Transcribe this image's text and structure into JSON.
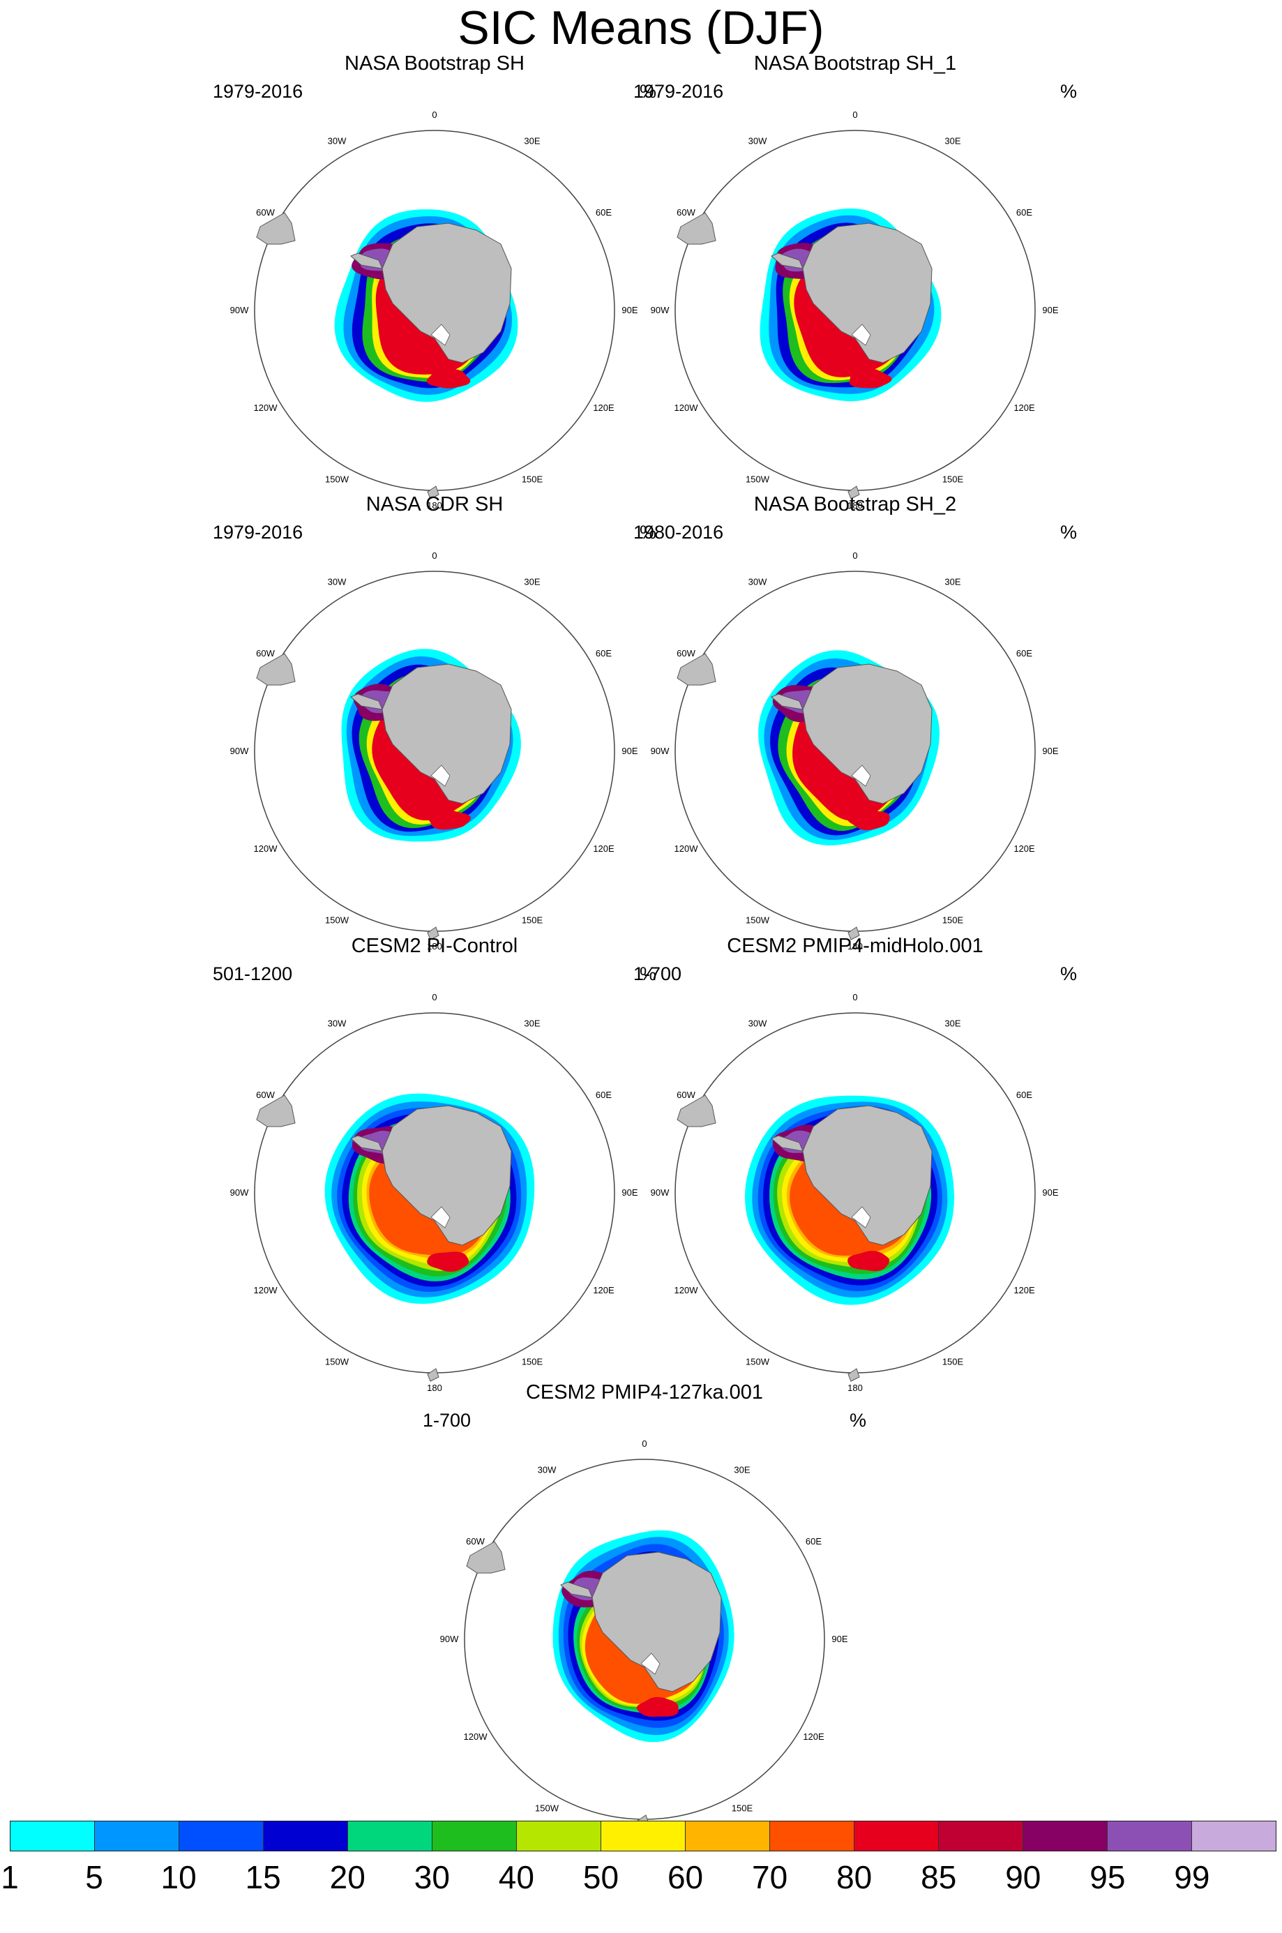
{
  "title": "SIC Means (DJF)",
  "units": "%",
  "graticule_labels": [
    "0",
    "30E",
    "60E",
    "90E",
    "120E",
    "150E",
    "180",
    "150W",
    "120W",
    "90W",
    "60W",
    "30W"
  ],
  "panels": [
    {
      "title": "NASA Bootstrap SH",
      "period": "1979-2016",
      "style": "obs"
    },
    {
      "title": "NASA Bootstrap SH_1",
      "period": "1979-2016",
      "style": "obs"
    },
    {
      "title": "NASA CDR SH",
      "period": "1979-2016",
      "style": "obs"
    },
    {
      "title": "NASA Bootstrap SH_2",
      "period": "1980-2016",
      "style": "obs"
    },
    {
      "title": "CESM2 PI-Control",
      "period": "501-1200",
      "style": "model"
    },
    {
      "title": "CESM2 PMIP4-midHolo.001",
      "period": "1-700",
      "style": "model"
    },
    {
      "title": "CESM2 PMIP4-127ka.001",
      "period": "1-700",
      "style": "model127"
    }
  ],
  "colorbar": {
    "labels": [
      "1",
      "5",
      "10",
      "15",
      "20",
      "30",
      "40",
      "50",
      "60",
      "70",
      "80",
      "85",
      "90",
      "95",
      "99"
    ],
    "colors": [
      "#00ffff",
      "#0096ff",
      "#0050ff",
      "#0000d2",
      "#00d77d",
      "#1ebe1e",
      "#b4e600",
      "#fff000",
      "#ffb400",
      "#ff5000",
      "#e6001e",
      "#c00032",
      "#870064",
      "#8c50b4",
      "#c8aadc"
    ]
  }
}
